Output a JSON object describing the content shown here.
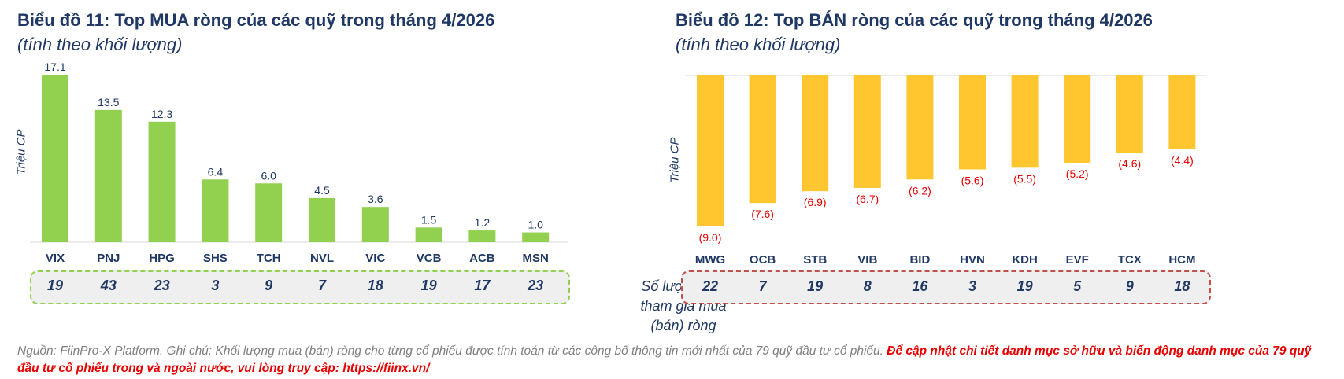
{
  "left": {
    "title": "Biểu đồ 11: Top MUA ròng của các quỹ trong tháng 4/2026",
    "subtitle": "(tính theo khối lượng)",
    "ylabel": "Triệu CP",
    "counts": [
      "19",
      "43",
      "23",
      "3",
      "9",
      "7",
      "18",
      "19",
      "17",
      "23"
    ]
  },
  "right": {
    "title": "Biểu đồ 12: Top BÁN ròng của các quỹ trong tháng 4/2026",
    "subtitle": "(tính theo khối lượng)",
    "ylabel": "Triệu CP",
    "counts": [
      "22",
      "7",
      "19",
      "8",
      "16",
      "3",
      "19",
      "5",
      "9",
      "18"
    ]
  },
  "middle_note": "Số lượng quỹ tham gia mua (bán) ròng",
  "footer": {
    "source": "Nguồn: FiinPro-X Platform. Ghi chú: Khối lượng mua (bán) ròng cho từng cổ phiếu được tính toán từ các công bố thông tin mới nhất của 79 quỹ đầu tư cổ phiếu.",
    "cta": "Để cập nhật chi tiết danh mục sở hữu và biến động danh mục của 79 quỹ đầu tư cổ phiếu trong và ngoài nước, vui lòng truy cập:",
    "link": "https://fiinx.vn/"
  },
  "colors": {
    "buy": "#92D050",
    "sell": "#FFC62F",
    "text": "#1F3864",
    "neg_label": "#E60000",
    "buy_box_border": "#92D050",
    "sell_box_border": "#C0504D"
  },
  "chart_data": [
    {
      "type": "bar",
      "title": "Biểu đồ 11: Top MUA ròng của các quỹ trong tháng 4/2026",
      "ylabel": "Triệu CP",
      "categories": [
        "VIX",
        "PNJ",
        "HPG",
        "SHS",
        "TCH",
        "NVL",
        "VIC",
        "VCB",
        "ACB",
        "MSN"
      ],
      "values": [
        17.1,
        13.5,
        12.3,
        6.4,
        6.0,
        4.5,
        3.6,
        1.5,
        1.2,
        1.0
      ],
      "data_labels": [
        "17.1",
        "13.5",
        "12.3",
        "6.4",
        "6.0",
        "4.5",
        "3.6",
        "1.5",
        "1.2",
        "1.0"
      ],
      "ylim": [
        0,
        17.1
      ]
    },
    {
      "type": "bar",
      "title": "Biểu đồ 12: Top BÁN ròng của các quỹ trong tháng 4/2026",
      "ylabel": "Triệu CP",
      "categories": [
        "MWG",
        "OCB",
        "STB",
        "VIB",
        "BID",
        "HVN",
        "KDH",
        "EVF",
        "TCX",
        "HCM"
      ],
      "values": [
        -9.0,
        -7.6,
        -6.9,
        -6.7,
        -6.2,
        -5.6,
        -5.5,
        -5.2,
        -4.6,
        -4.4
      ],
      "data_labels": [
        "(9.0)",
        "(7.6)",
        "(6.9)",
        "(6.7)",
        "(6.2)",
        "(5.6)",
        "(5.5)",
        "(5.2)",
        "(4.6)",
        "(4.4)"
      ],
      "ylim": [
        -9.0,
        0
      ]
    }
  ]
}
